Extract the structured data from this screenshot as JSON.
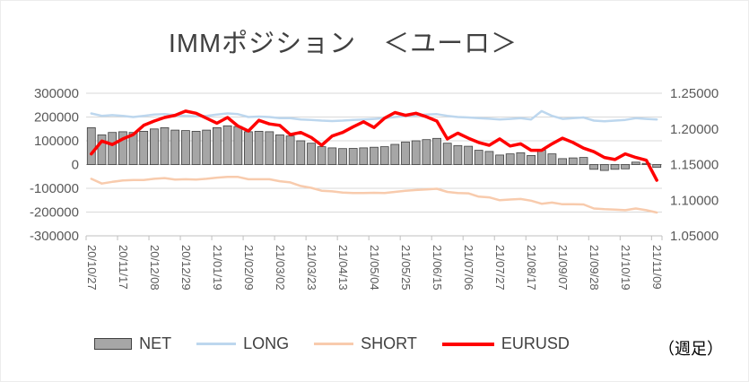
{
  "chart_data": {
    "type": "combo",
    "title": "IMMポジション　＜ユーロ＞",
    "note": "（週足）",
    "legend_position": "bottom",
    "grid": true,
    "left_axis": {
      "min": -300000,
      "max": 300000,
      "step": 100000,
      "ticks": [
        "300000",
        "200000",
        "100000",
        "0",
        "-100000",
        "-200000",
        "-300000"
      ]
    },
    "right_axis": {
      "min": 1.05,
      "max": 1.25,
      "step": 0.05,
      "ticks": [
        "1.25000",
        "1.20000",
        "1.15000",
        "1.10000",
        "1.05000"
      ]
    },
    "x_label_every": 3,
    "x_visible_labels": [
      "20/10/27",
      "20/11/17",
      "20/12/08",
      "20/12/29",
      "21/01/19",
      "21/02/09",
      "21/03/02",
      "21/03/23",
      "21/04/13",
      "21/05/04",
      "21/05/25",
      "21/06/15",
      "21/07/06",
      "21/07/27",
      "21/08/17",
      "21/09/07",
      "21/09/28",
      "21/10/19",
      "21/11/09"
    ],
    "series": [
      {
        "name": "NET",
        "type": "bar",
        "axis": "left",
        "color": "#a6a6a6",
        "border": "#404040",
        "values": [
          155000,
          125000,
          135000,
          138000,
          135000,
          140000,
          150000,
          155000,
          145000,
          143000,
          140000,
          145000,
          155000,
          163000,
          160000,
          138000,
          140000,
          138000,
          125000,
          120000,
          100000,
          90000,
          75000,
          70000,
          67000,
          68000,
          70000,
          73000,
          75000,
          85000,
          95000,
          100000,
          105000,
          110000,
          90000,
          80000,
          77000,
          60000,
          55000,
          40000,
          45000,
          50000,
          38000,
          60000,
          45000,
          25000,
          28000,
          30000,
          -20000,
          -25000,
          -20000,
          -18000,
          10000,
          5000,
          -12000
        ]
      },
      {
        "name": "LONG",
        "type": "line",
        "axis": "left",
        "color": "#bdd7ee",
        "width": 2.5,
        "values": [
          215000,
          205000,
          208000,
          205000,
          200000,
          205000,
          210000,
          212000,
          208000,
          205000,
          203000,
          205000,
          210000,
          215000,
          212000,
          200000,
          202000,
          200000,
          195000,
          195000,
          190000,
          188000,
          185000,
          183000,
          185000,
          188000,
          190000,
          192000,
          195000,
          200000,
          205000,
          207000,
          210000,
          212000,
          205000,
          200000,
          198000,
          195000,
          193000,
          190000,
          192000,
          195000,
          190000,
          225000,
          205000,
          192000,
          195000,
          198000,
          185000,
          182000,
          185000,
          188000,
          195000,
          192000,
          190000
        ]
      },
      {
        "name": "SHORT",
        "type": "line",
        "axis": "left",
        "color": "#f8cbad",
        "width": 2.5,
        "values": [
          -60000,
          -80000,
          -73000,
          -67000,
          -65000,
          -65000,
          -60000,
          -57000,
          -63000,
          -62000,
          -63000,
          -60000,
          -55000,
          -52000,
          -52000,
          -62000,
          -62000,
          -62000,
          -70000,
          -75000,
          -90000,
          -98000,
          -110000,
          -113000,
          -118000,
          -120000,
          -120000,
          -119000,
          -120000,
          -115000,
          -110000,
          -107000,
          -105000,
          -102000,
          -115000,
          -120000,
          -121000,
          -135000,
          -138000,
          -150000,
          -147000,
          -145000,
          -152000,
          -165000,
          -160000,
          -167000,
          -167000,
          -168000,
          -185000,
          -188000,
          -190000,
          -192000,
          -185000,
          -192000,
          -202000
        ]
      },
      {
        "name": "EURUSD",
        "type": "line",
        "axis": "right",
        "color": "#ff0000",
        "width": 3.5,
        "values": [
          1.165,
          1.183,
          1.178,
          1.186,
          1.192,
          1.205,
          1.211,
          1.216,
          1.219,
          1.225,
          1.222,
          1.215,
          1.208,
          1.216,
          1.204,
          1.197,
          1.212,
          1.207,
          1.205,
          1.192,
          1.195,
          1.188,
          1.177,
          1.19,
          1.195,
          1.203,
          1.21,
          1.202,
          1.215,
          1.223,
          1.219,
          1.222,
          1.217,
          1.211,
          1.186,
          1.194,
          1.187,
          1.181,
          1.177,
          1.186,
          1.176,
          1.179,
          1.17,
          1.17,
          1.179,
          1.187,
          1.181,
          1.173,
          1.168,
          1.16,
          1.157,
          1.165,
          1.16,
          1.156,
          1.128
        ]
      }
    ]
  }
}
